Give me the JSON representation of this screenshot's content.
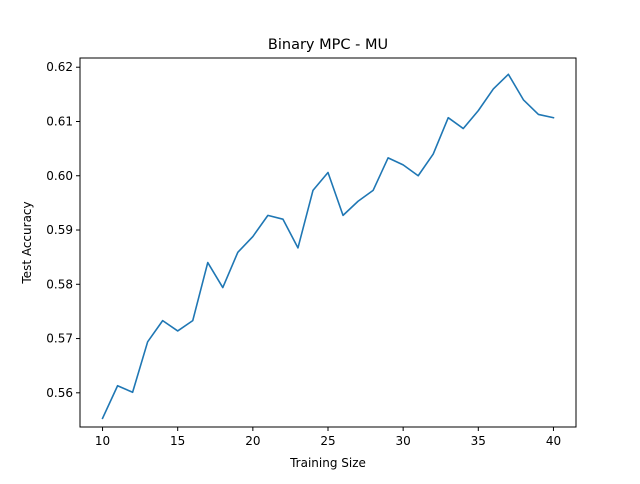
{
  "chart_data": {
    "type": "line",
    "title": "Binary MPC - MU",
    "xlabel": "Training Size",
    "ylabel": "Test Accuracy",
    "xlim": [
      8.5,
      41.5
    ],
    "ylim": [
      0.5537,
      0.6217
    ],
    "xticks": [
      10,
      15,
      20,
      25,
      30,
      35,
      40
    ],
    "yticks": [
      0.56,
      0.57,
      0.58,
      0.59,
      0.6,
      0.61,
      0.62
    ],
    "xtick_labels": [
      "10",
      "15",
      "20",
      "25",
      "30",
      "35",
      "40"
    ],
    "ytick_labels": [
      "0.56",
      "0.57",
      "0.58",
      "0.59",
      "0.60",
      "0.61",
      "0.62"
    ],
    "grid": false,
    "series": [
      {
        "color": "#1f77b4",
        "x": [
          10,
          11,
          12,
          13,
          14,
          15,
          16,
          17,
          18,
          19,
          20,
          21,
          22,
          23,
          24,
          25,
          26,
          27,
          28,
          29,
          30,
          31,
          32,
          33,
          34,
          35,
          36,
          37,
          38,
          39,
          40
        ],
        "y": [
          0.5553,
          0.5613,
          0.5601,
          0.5694,
          0.5733,
          0.5714,
          0.5733,
          0.584,
          0.5794,
          0.5859,
          0.5888,
          0.5927,
          0.592,
          0.5867,
          0.5973,
          0.6006,
          0.5927,
          0.5953,
          0.5973,
          0.6033,
          0.602,
          0.6,
          0.604,
          0.6107,
          0.6087,
          0.612,
          0.616,
          0.6187,
          0.614,
          0.6113,
          0.6107
        ]
      }
    ]
  }
}
